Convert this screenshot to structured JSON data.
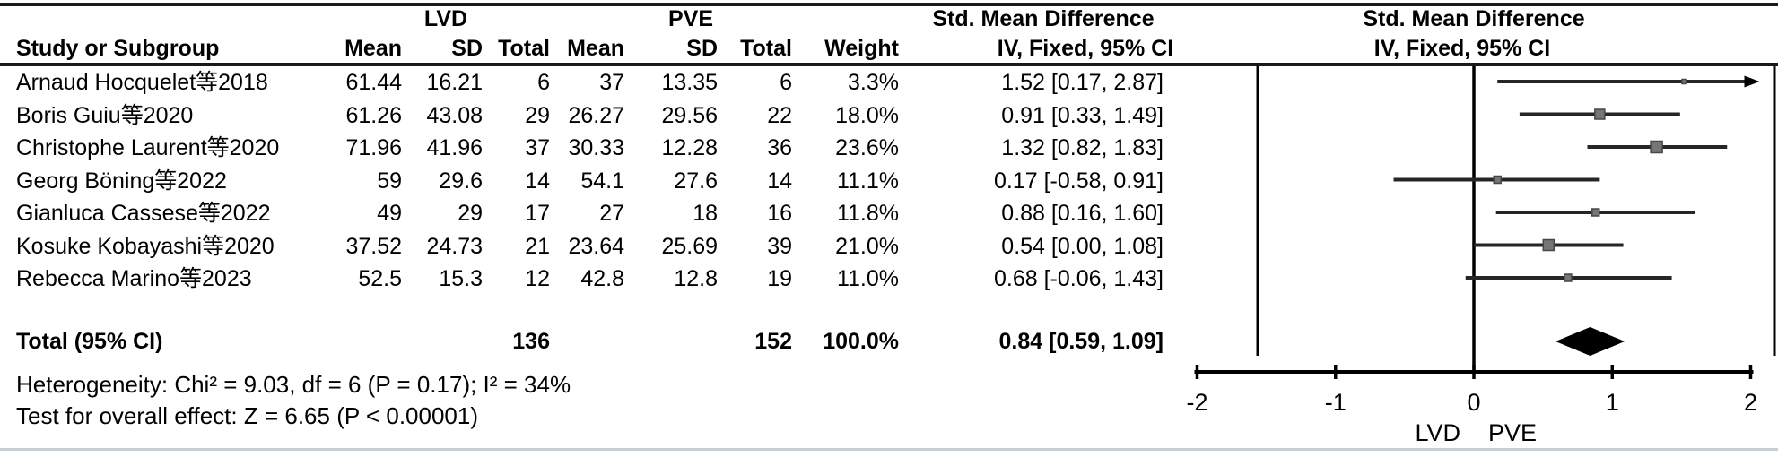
{
  "header": {
    "group1": "LVD",
    "group2": "PVE",
    "smd": "Std. Mean Difference",
    "iv": "IV, Fixed, 95% CI",
    "study": "Study or Subgroup",
    "mean1": "Mean",
    "sd1": "SD",
    "total1": "Total",
    "mean2": "Mean",
    "sd2": "SD",
    "total2": "Total",
    "weight": "Weight"
  },
  "rows": [
    {
      "study": "Arnaud Hocquelet等2018",
      "mean1": "61.44",
      "sd1": "16.21",
      "total1": "6",
      "mean2": "37",
      "sd2": "13.35",
      "total2": "6",
      "weight": "3.3%",
      "ci_text": "1.52 [0.17, 2.87]"
    },
    {
      "study": "Boris Guiu等2020",
      "mean1": "61.26",
      "sd1": "43.08",
      "total1": "29",
      "mean2": "26.27",
      "sd2": "29.56",
      "total2": "22",
      "weight": "18.0%",
      "ci_text": "0.91 [0.33, 1.49]"
    },
    {
      "study": "Christophe Laurent等2020",
      "mean1": "71.96",
      "sd1": "41.96",
      "total1": "37",
      "mean2": "30.33",
      "sd2": "12.28",
      "total2": "36",
      "weight": "23.6%",
      "ci_text": "1.32 [0.82, 1.83]"
    },
    {
      "study": "Georg Böning等2022",
      "mean1": "59",
      "sd1": "29.6",
      "total1": "14",
      "mean2": "54.1",
      "sd2": "27.6",
      "total2": "14",
      "weight": "11.1%",
      "ci_text": "0.17 [-0.58, 0.91]"
    },
    {
      "study": "Gianluca Cassese等2022",
      "mean1": "49",
      "sd1": "29",
      "total1": "17",
      "mean2": "27",
      "sd2": "18",
      "total2": "16",
      "weight": "11.8%",
      "ci_text": "0.88 [0.16, 1.60]"
    },
    {
      "study": "Kosuke Kobayashi等2020",
      "mean1": "37.52",
      "sd1": "24.73",
      "total1": "21",
      "mean2": "23.64",
      "sd2": "25.69",
      "total2": "39",
      "weight": "21.0%",
      "ci_text": "0.54 [0.00, 1.08]"
    },
    {
      "study": "Rebecca Marino等2023",
      "mean1": "52.5",
      "sd1": "15.3",
      "total1": "12",
      "mean2": "42.8",
      "sd2": "12.8",
      "total2": "19",
      "weight": "11.0%",
      "ci_text": "0.68 [-0.06, 1.43]"
    }
  ],
  "total_row": {
    "label": "Total (95% CI)",
    "total1": "136",
    "total2": "152",
    "weight": "100.0%",
    "ci_text": "0.84 [0.59, 1.09]"
  },
  "footnotes": {
    "heterogeneity": "Heterogeneity: Chi² = 9.03, df = 6 (P = 0.17); I² = 34%",
    "overall_effect": "Test for overall effect: Z = 6.65 (P < 0.00001)"
  },
  "axis": {
    "ticks": [
      "-2",
      "-1",
      "0",
      "1",
      "2"
    ],
    "min": -2,
    "max": 2,
    "left_label": "LVD",
    "right_label": "PVE"
  },
  "colors": {
    "marker_fill": "#767676",
    "marker_stroke": "#474747",
    "ci_line": "#262626",
    "axis": "#000000",
    "diamond": "#000000",
    "rule": "#1a1a1a",
    "bottom_rule": "#c9ced3"
  },
  "chart_data": {
    "type": "scatter",
    "title": "Std. Mean Difference",
    "subtitle": "IV, Fixed, 95% CI",
    "xlim": [
      -2,
      2
    ],
    "x_ticks": [
      -2,
      -1,
      0,
      1,
      2
    ],
    "x_axis_left_label": "LVD",
    "x_axis_right_label": "PVE",
    "studies": [
      {
        "name": "Arnaud Hocquelet等2018",
        "lvd": {
          "mean": 61.44,
          "sd": 16.21,
          "total": 6
        },
        "pve": {
          "mean": 37,
          "sd": 13.35,
          "total": 6
        },
        "weight_pct": 3.3,
        "smd": 1.52,
        "ci_low": 0.17,
        "ci_high": 2.87
      },
      {
        "name": "Boris Guiu等2020",
        "lvd": {
          "mean": 61.26,
          "sd": 43.08,
          "total": 29
        },
        "pve": {
          "mean": 26.27,
          "sd": 29.56,
          "total": 22
        },
        "weight_pct": 18.0,
        "smd": 0.91,
        "ci_low": 0.33,
        "ci_high": 1.49
      },
      {
        "name": "Christophe Laurent等2020",
        "lvd": {
          "mean": 71.96,
          "sd": 41.96,
          "total": 37
        },
        "pve": {
          "mean": 30.33,
          "sd": 12.28,
          "total": 36
        },
        "weight_pct": 23.6,
        "smd": 1.32,
        "ci_low": 0.82,
        "ci_high": 1.83
      },
      {
        "name": "Georg Böning等2022",
        "lvd": {
          "mean": 59,
          "sd": 29.6,
          "total": 14
        },
        "pve": {
          "mean": 54.1,
          "sd": 27.6,
          "total": 14
        },
        "weight_pct": 11.1,
        "smd": 0.17,
        "ci_low": -0.58,
        "ci_high": 0.91
      },
      {
        "name": "Gianluca Cassese等2022",
        "lvd": {
          "mean": 49,
          "sd": 29,
          "total": 17
        },
        "pve": {
          "mean": 27,
          "sd": 18,
          "total": 16
        },
        "weight_pct": 11.8,
        "smd": 0.88,
        "ci_low": 0.16,
        "ci_high": 1.6
      },
      {
        "name": "Kosuke Kobayashi等2020",
        "lvd": {
          "mean": 37.52,
          "sd": 24.73,
          "total": 21
        },
        "pve": {
          "mean": 23.64,
          "sd": 25.69,
          "total": 39
        },
        "weight_pct": 21.0,
        "smd": 0.54,
        "ci_low": 0.0,
        "ci_high": 1.08
      },
      {
        "name": "Rebecca Marino等2023",
        "lvd": {
          "mean": 52.5,
          "sd": 15.3,
          "total": 12
        },
        "pve": {
          "mean": 42.8,
          "sd": 12.8,
          "total": 19
        },
        "weight_pct": 11.0,
        "smd": 0.68,
        "ci_low": -0.06,
        "ci_high": 1.43
      }
    ],
    "total": {
      "lvd_total": 136,
      "pve_total": 152,
      "weight_pct": 100.0,
      "smd": 0.84,
      "ci_low": 0.59,
      "ci_high": 1.09
    },
    "heterogeneity": {
      "chi2": 9.03,
      "df": 6,
      "p": 0.17,
      "i2_pct": 34
    },
    "overall_effect": {
      "z": 6.65,
      "p": "< 0.00001"
    }
  }
}
